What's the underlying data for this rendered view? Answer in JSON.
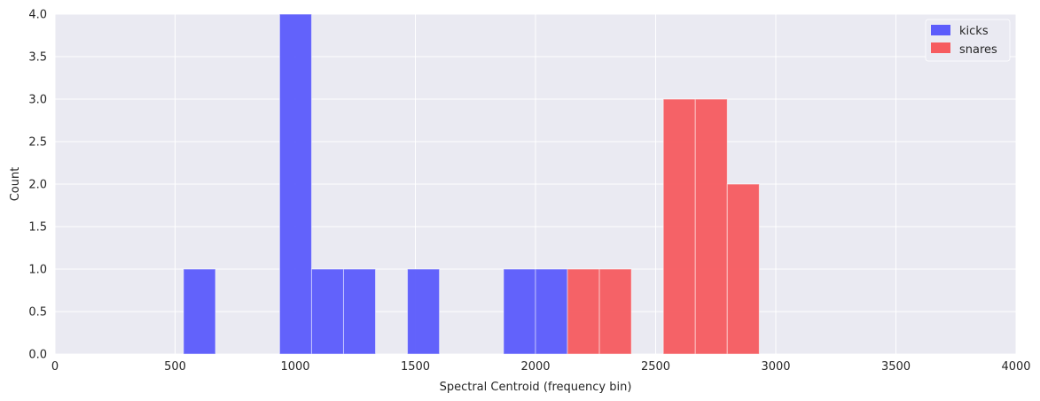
{
  "chart_data": {
    "type": "bar",
    "title": "",
    "xlabel": "Spectral Centroid (frequency bin)",
    "ylabel": "Count",
    "xlim": [
      0,
      4000
    ],
    "ylim": [
      0,
      4.0
    ],
    "grid": true,
    "legend_position": "top-right",
    "xticks": [
      0,
      500,
      1000,
      1500,
      2000,
      2500,
      3000,
      3500,
      4000
    ],
    "xtick_labels": [
      "0",
      "500",
      "1000",
      "1500",
      "2000",
      "2500",
      "3000",
      "3500",
      "4000"
    ],
    "yticks": [
      0,
      0.5,
      1.0,
      1.5,
      2.0,
      2.5,
      3.0,
      3.5,
      4.0
    ],
    "ytick_labels": [
      "0.0",
      "0.5",
      "1.0",
      "1.5",
      "2.0",
      "2.5",
      "3.0",
      "3.5",
      "4.0"
    ],
    "series": [
      {
        "name": "kicks",
        "color": "#5B5BFB",
        "bins": [
          {
            "x0": 535,
            "x1": 668,
            "count": 1
          },
          {
            "x0": 935,
            "x1": 1068,
            "count": 4
          },
          {
            "x0": 1068,
            "x1": 1201,
            "count": 1
          },
          {
            "x0": 1201,
            "x1": 1334,
            "count": 1
          },
          {
            "x0": 1467,
            "x1": 1600,
            "count": 1
          },
          {
            "x0": 1867,
            "x1": 2000,
            "count": 1
          },
          {
            "x0": 2000,
            "x1": 2133,
            "count": 1
          }
        ]
      },
      {
        "name": "snares",
        "color": "#F65B5F",
        "bins": [
          {
            "x0": 2133,
            "x1": 2266,
            "count": 1
          },
          {
            "x0": 2266,
            "x1": 2399,
            "count": 1
          },
          {
            "x0": 2532,
            "x1": 2665,
            "count": 3
          },
          {
            "x0": 2665,
            "x1": 2798,
            "count": 3
          },
          {
            "x0": 2798,
            "x1": 2931,
            "count": 2
          }
        ]
      }
    ]
  }
}
